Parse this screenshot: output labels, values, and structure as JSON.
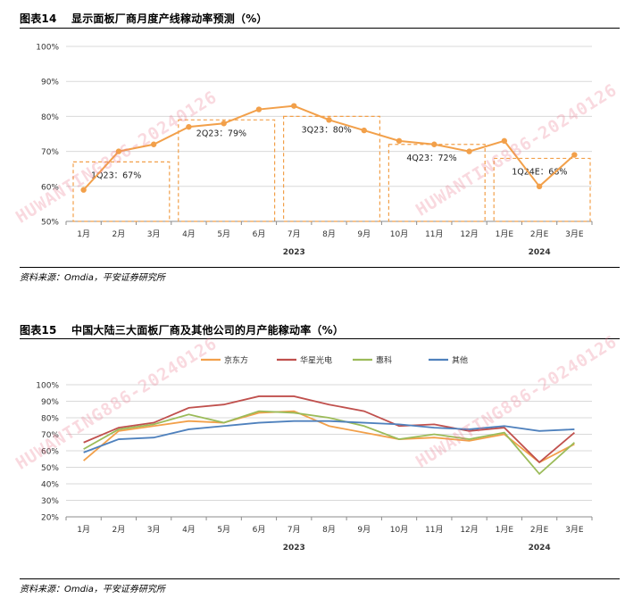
{
  "figure1": {
    "label": "图表14",
    "title": "显示面板厂商月度产线稼动率预测（%）",
    "source": "资料来源：Omdia，平安证券研究所"
  },
  "figure2": {
    "label": "图表15",
    "title": "中国大陆三大面板厂商及其他公司的月产能稼动率（%）",
    "source": "资料来源：Omdia，平安证券研究所"
  },
  "watermark": "HUWANTING886-20240126",
  "chart_data": [
    {
      "type": "line",
      "categories": [
        "1月",
        "2月",
        "3月",
        "4月",
        "5月",
        "6月",
        "7月",
        "8月",
        "9月",
        "10月",
        "11月",
        "12月",
        "1月E",
        "2月E",
        "3月E"
      ],
      "year_labels": [
        {
          "label": "2023",
          "at_index": 6
        },
        {
          "label": "2024",
          "at_index": 13
        }
      ],
      "series": [
        {
          "values": [
            59,
            70,
            72,
            77,
            78,
            82,
            83,
            79,
            76,
            73,
            72,
            70,
            73,
            60,
            69
          ],
          "color": "#F2A04A"
        }
      ],
      "ylim": [
        50,
        100
      ],
      "yticks": [
        "50%",
        "60%",
        "70%",
        "80%",
        "90%",
        "100%"
      ],
      "quarter_boxes": [
        {
          "label": "1Q23：67%",
          "value": 67,
          "from": 0,
          "to": 2
        },
        {
          "label": "2Q23：79%",
          "value": 79,
          "from": 3,
          "to": 5
        },
        {
          "label": "3Q23：80%",
          "value": 80,
          "from": 6,
          "to": 8
        },
        {
          "label": "4Q23：72%",
          "value": 72,
          "from": 9,
          "to": 11
        },
        {
          "label": "1Q24E：68%",
          "value": 68,
          "from": 12,
          "to": 14
        }
      ],
      "box_color": "#F2A04A",
      "grid": true
    },
    {
      "type": "line",
      "categories": [
        "1月",
        "2月",
        "3月",
        "4月",
        "5月",
        "6月",
        "7月",
        "8月",
        "9月",
        "10月",
        "11月",
        "12月",
        "1月E",
        "2月E",
        "3月E"
      ],
      "year_labels": [
        {
          "label": "2023",
          "at_index": 6
        },
        {
          "label": "2024",
          "at_index": 13
        }
      ],
      "ylim": [
        20,
        100
      ],
      "yticks": [
        "20%",
        "30%",
        "40%",
        "50%",
        "60%",
        "70%",
        "80%",
        "90%",
        "100%"
      ],
      "legend_position": "top-center",
      "series": [
        {
          "name": "京东方",
          "color": "#F2A04A",
          "values": [
            54,
            72,
            75,
            78,
            77,
            83,
            84,
            75,
            71,
            67,
            68,
            66,
            70,
            53,
            64
          ]
        },
        {
          "name": "华星光电",
          "color": "#C0504D",
          "values": [
            65,
            74,
            77,
            86,
            88,
            93,
            93,
            88,
            84,
            75,
            76,
            72,
            74,
            53,
            71
          ]
        },
        {
          "name": "惠科",
          "color": "#9BBB59",
          "values": [
            61,
            73,
            76,
            82,
            77,
            84,
            83,
            80,
            75,
            67,
            70,
            67,
            71,
            46,
            65
          ]
        },
        {
          "name": "其他",
          "color": "#4F81BD",
          "values": [
            59,
            67,
            68,
            73,
            75,
            77,
            78,
            78,
            77,
            76,
            74,
            73,
            75,
            72,
            73
          ]
        }
      ],
      "grid": true
    }
  ]
}
